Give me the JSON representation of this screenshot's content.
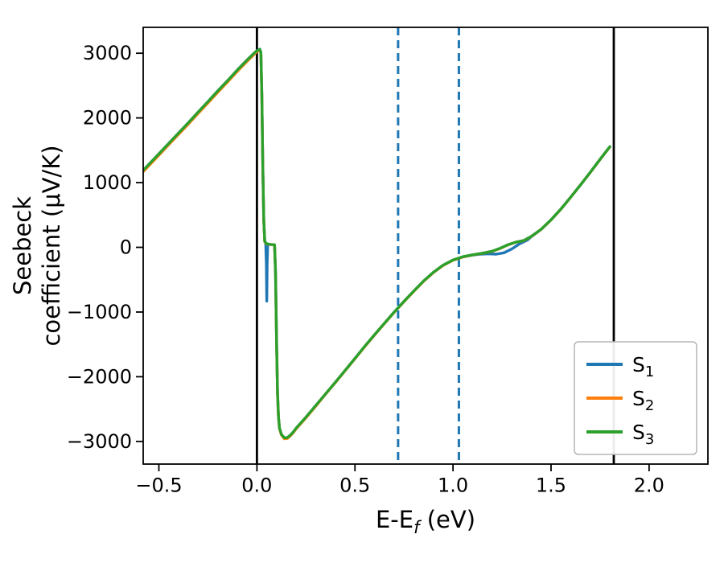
{
  "figure": {
    "background": "#ffffff"
  },
  "chart_data": {
    "type": "line",
    "title": "",
    "xlabel_text": "E-E_f (eV)",
    "ylabel_text": "Seebeck coefficient (μV/K)",
    "xlabel": {
      "main": "E-E",
      "sub": "f",
      "suffix": "(eV)"
    },
    "ylabel": {
      "line1": "Seebeck",
      "line2": "coefficient (μV/K)"
    },
    "xlim": [
      -0.58,
      2.3
    ],
    "ylim": [
      -3350,
      3400
    ],
    "xticks": [
      -0.5,
      0.0,
      0.5,
      1.0,
      1.5,
      2.0
    ],
    "xtick_labels": [
      "−0.5",
      "0.0",
      "0.5",
      "1.0",
      "1.5",
      "2.0"
    ],
    "yticks": [
      -3000,
      -2000,
      -1000,
      0,
      1000,
      2000,
      3000
    ],
    "ytick_labels": [
      "−3000",
      "−2000",
      "−1000",
      "0",
      "1000",
      "2000",
      "3000"
    ],
    "grid": false,
    "vlines_solid": {
      "color": "#000000",
      "x": [
        0.0,
        1.82
      ]
    },
    "vlines_dashed": {
      "color": "#1f77b4",
      "x": [
        0.72,
        1.03
      ],
      "style": "dashed"
    },
    "legend": {
      "position": "lower right",
      "entries": [
        {
          "label": "S",
          "sub": "1",
          "color": "#1f77b4"
        },
        {
          "label": "S",
          "sub": "2",
          "color": "#ff7f0e"
        },
        {
          "label": "S",
          "sub": "3",
          "color": "#2ca02c"
        }
      ]
    },
    "series": [
      {
        "name": "S1",
        "color": "#1f77b4",
        "points": [
          [
            -0.58,
            1190
          ],
          [
            -0.5,
            1445
          ],
          [
            -0.45,
            1605
          ],
          [
            -0.4,
            1765
          ],
          [
            -0.35,
            1925
          ],
          [
            -0.3,
            2090
          ],
          [
            -0.25,
            2250
          ],
          [
            -0.2,
            2415
          ],
          [
            -0.15,
            2575
          ],
          [
            -0.1,
            2740
          ],
          [
            -0.05,
            2895
          ],
          [
            -0.02,
            2985
          ],
          [
            0,
            3040
          ],
          [
            0.015,
            3062
          ],
          [
            0.02,
            3012
          ],
          [
            0.025,
            2355
          ],
          [
            0.03,
            1255
          ],
          [
            0.035,
            425
          ],
          [
            0.04,
            95
          ],
          [
            0.045,
            65
          ],
          [
            0.048,
            -250
          ],
          [
            0.05,
            -830
          ],
          [
            0.052,
            -250
          ],
          [
            0.055,
            48
          ],
          [
            0.07,
            42
          ],
          [
            0.09,
            36
          ],
          [
            0.095,
            -385
          ],
          [
            0.1,
            -1455
          ],
          [
            0.105,
            -2255
          ],
          [
            0.11,
            -2625
          ],
          [
            0.115,
            -2795
          ],
          [
            0.125,
            -2895
          ],
          [
            0.14,
            -2950
          ],
          [
            0.155,
            -2945
          ],
          [
            0.17,
            -2908
          ],
          [
            0.185,
            -2858
          ],
          [
            0.2,
            -2798
          ],
          [
            0.25,
            -2628
          ],
          [
            0.3,
            -2448
          ],
          [
            0.35,
            -2268
          ],
          [
            0.4,
            -2088
          ],
          [
            0.45,
            -1903
          ],
          [
            0.5,
            -1718
          ],
          [
            0.55,
            -1533
          ],
          [
            0.6,
            -1352
          ],
          [
            0.65,
            -1177
          ],
          [
            0.7,
            -1002
          ],
          [
            0.75,
            -837
          ],
          [
            0.8,
            -677
          ],
          [
            0.85,
            -522
          ],
          [
            0.9,
            -387
          ],
          [
            0.95,
            -277
          ],
          [
            1.0,
            -197
          ],
          [
            1.05,
            -148
          ],
          [
            1.1,
            -120
          ],
          [
            1.14,
            -105
          ],
          [
            1.18,
            -100
          ],
          [
            1.22,
            -105
          ],
          [
            1.26,
            -85
          ],
          [
            1.3,
            -25
          ],
          [
            1.34,
            55
          ],
          [
            1.38,
            115
          ],
          [
            1.4,
            165
          ],
          [
            1.45,
            278
          ],
          [
            1.5,
            425
          ],
          [
            1.55,
            590
          ],
          [
            1.6,
            775
          ],
          [
            1.65,
            965
          ],
          [
            1.7,
            1160
          ],
          [
            1.75,
            1360
          ],
          [
            1.8,
            1555
          ]
        ]
      },
      {
        "name": "S2",
        "color": "#ff7f0e",
        "points": [
          [
            -0.58,
            1170
          ],
          [
            -0.5,
            1425
          ],
          [
            -0.45,
            1585
          ],
          [
            -0.4,
            1745
          ],
          [
            -0.35,
            1905
          ],
          [
            -0.3,
            2070
          ],
          [
            -0.25,
            2230
          ],
          [
            -0.2,
            2395
          ],
          [
            -0.15,
            2555
          ],
          [
            -0.1,
            2720
          ],
          [
            -0.05,
            2875
          ],
          [
            -0.02,
            2965
          ],
          [
            0,
            3025
          ],
          [
            0.015,
            3045
          ],
          [
            0.02,
            3000
          ],
          [
            0.025,
            2340
          ],
          [
            0.03,
            1240
          ],
          [
            0.035,
            410
          ],
          [
            0.04,
            85
          ],
          [
            0.05,
            50
          ],
          [
            0.07,
            42
          ],
          [
            0.09,
            38
          ],
          [
            0.095,
            -390
          ],
          [
            0.1,
            -1460
          ],
          [
            0.105,
            -2260
          ],
          [
            0.11,
            -2630
          ],
          [
            0.115,
            -2800
          ],
          [
            0.125,
            -2900
          ],
          [
            0.14,
            -2960
          ],
          [
            0.155,
            -2955
          ],
          [
            0.17,
            -2915
          ],
          [
            0.185,
            -2865
          ],
          [
            0.2,
            -2805
          ],
          [
            0.25,
            -2635
          ],
          [
            0.3,
            -2455
          ],
          [
            0.35,
            -2270
          ],
          [
            0.4,
            -2090
          ],
          [
            0.45,
            -1905
          ],
          [
            0.5,
            -1720
          ],
          [
            0.55,
            -1535
          ],
          [
            0.6,
            -1355
          ],
          [
            0.65,
            -1180
          ],
          [
            0.7,
            -1005
          ],
          [
            0.75,
            -840
          ],
          [
            0.8,
            -680
          ],
          [
            0.85,
            -525
          ],
          [
            0.9,
            -390
          ],
          [
            0.95,
            -280
          ],
          [
            1.0,
            -200
          ],
          [
            1.05,
            -150
          ],
          [
            1.1,
            -118
          ],
          [
            1.15,
            -92
          ],
          [
            1.2,
            -62
          ],
          [
            1.24,
            -18
          ],
          [
            1.28,
            38
          ],
          [
            1.32,
            78
          ],
          [
            1.36,
            103
          ],
          [
            1.4,
            168
          ],
          [
            1.45,
            278
          ],
          [
            1.5,
            423
          ],
          [
            1.55,
            588
          ],
          [
            1.6,
            773
          ],
          [
            1.65,
            963
          ],
          [
            1.7,
            1158
          ],
          [
            1.75,
            1358
          ],
          [
            1.8,
            1552
          ]
        ]
      },
      {
        "name": "S3",
        "color": "#2ca02c",
        "points": [
          [
            -0.58,
            1190
          ],
          [
            -0.5,
            1445
          ],
          [
            -0.45,
            1605
          ],
          [
            -0.4,
            1765
          ],
          [
            -0.35,
            1925
          ],
          [
            -0.3,
            2090
          ],
          [
            -0.25,
            2250
          ],
          [
            -0.2,
            2415
          ],
          [
            -0.15,
            2575
          ],
          [
            -0.1,
            2740
          ],
          [
            -0.05,
            2895
          ],
          [
            -0.02,
            2985
          ],
          [
            0,
            3040
          ],
          [
            0.015,
            3060
          ],
          [
            0.02,
            3010
          ],
          [
            0.025,
            2350
          ],
          [
            0.03,
            1250
          ],
          [
            0.035,
            420
          ],
          [
            0.04,
            90
          ],
          [
            0.05,
            55
          ],
          [
            0.07,
            45
          ],
          [
            0.09,
            40
          ],
          [
            0.095,
            -380
          ],
          [
            0.1,
            -1450
          ],
          [
            0.105,
            -2250
          ],
          [
            0.11,
            -2620
          ],
          [
            0.115,
            -2790
          ],
          [
            0.125,
            -2890
          ],
          [
            0.14,
            -2945
          ],
          [
            0.155,
            -2940
          ],
          [
            0.17,
            -2905
          ],
          [
            0.185,
            -2855
          ],
          [
            0.2,
            -2795
          ],
          [
            0.25,
            -2625
          ],
          [
            0.3,
            -2445
          ],
          [
            0.35,
            -2265
          ],
          [
            0.4,
            -2085
          ],
          [
            0.45,
            -1900
          ],
          [
            0.5,
            -1715
          ],
          [
            0.55,
            -1530
          ],
          [
            0.6,
            -1350
          ],
          [
            0.65,
            -1175
          ],
          [
            0.7,
            -1000
          ],
          [
            0.75,
            -835
          ],
          [
            0.8,
            -675
          ],
          [
            0.85,
            -520
          ],
          [
            0.9,
            -385
          ],
          [
            0.95,
            -275
          ],
          [
            1.0,
            -195
          ],
          [
            1.05,
            -145
          ],
          [
            1.1,
            -115
          ],
          [
            1.15,
            -90
          ],
          [
            1.2,
            -60
          ],
          [
            1.24,
            -15
          ],
          [
            1.28,
            40
          ],
          [
            1.32,
            80
          ],
          [
            1.36,
            105
          ],
          [
            1.4,
            170
          ],
          [
            1.45,
            280
          ],
          [
            1.5,
            425
          ],
          [
            1.55,
            590
          ],
          [
            1.6,
            775
          ],
          [
            1.65,
            965
          ],
          [
            1.7,
            1160
          ],
          [
            1.75,
            1360
          ],
          [
            1.8,
            1555
          ]
        ]
      }
    ]
  }
}
